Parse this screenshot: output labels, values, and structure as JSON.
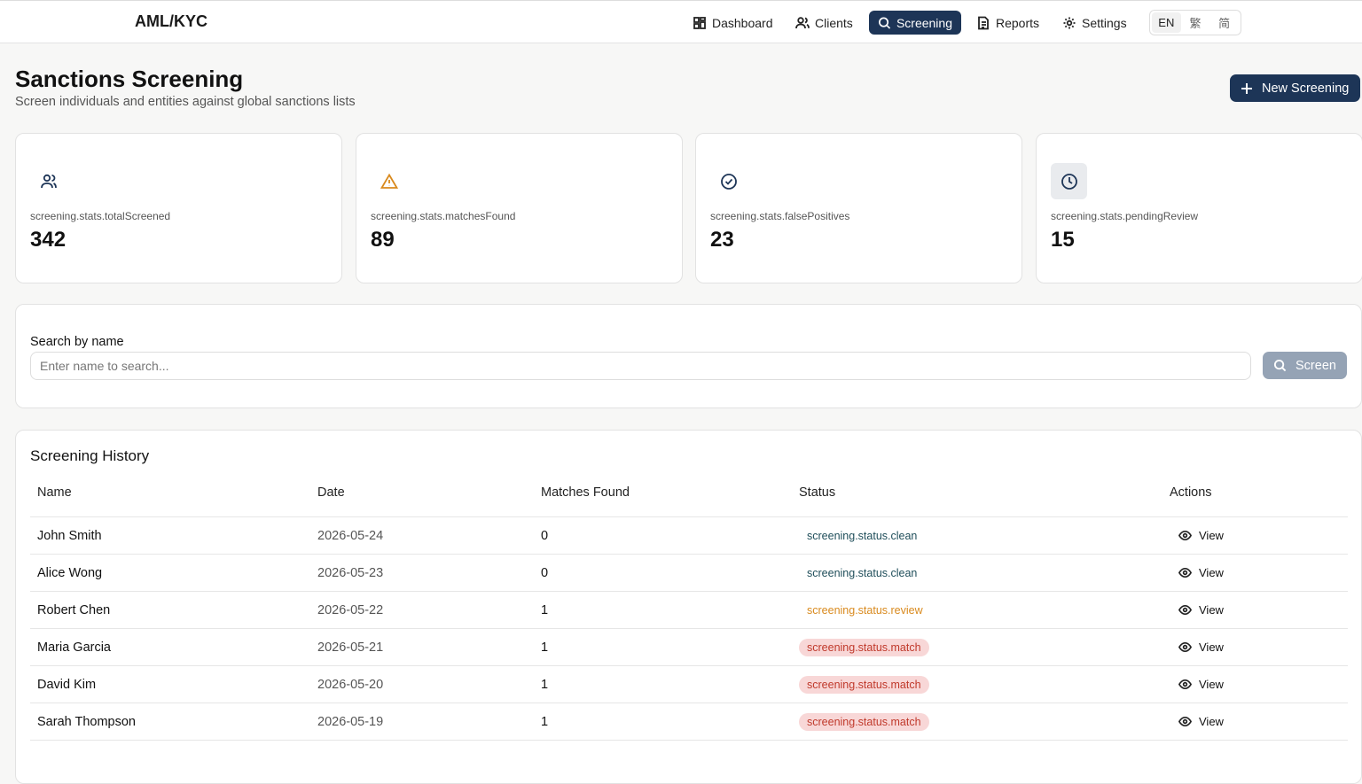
{
  "header": {
    "logo": "AML/KYC",
    "nav": [
      "Dashboard",
      "Clients",
      "Screening",
      "Reports",
      "Settings"
    ],
    "languages": [
      "EN",
      "繁",
      "简"
    ]
  },
  "page": {
    "title": "Sanctions Screening",
    "subtitle": "Screen individuals and entities against global sanctions lists",
    "action": "New Screening"
  },
  "stats": [
    {
      "label": "screening.stats.totalScreened",
      "value": 342
    },
    {
      "label": "screening.stats.matchesFound",
      "value": 89
    },
    {
      "label": "screening.stats.falsePositives",
      "value": 23
    },
    {
      "label": "screening.stats.pendingReview",
      "value": 15
    }
  ],
  "search": {
    "label": "Search by name",
    "placeholder": "Enter name to search...",
    "button": "Screen"
  },
  "history": {
    "title": "Screening History",
    "columns": [
      "Name",
      "Date",
      "Matches Found",
      "Status",
      "Actions"
    ],
    "rows": [
      [
        "John Smith",
        "2026-05-24",
        0,
        "screening.status.clean",
        "View"
      ],
      [
        "Alice Wong",
        "2026-05-23",
        0,
        "screening.status.clean",
        "View"
      ],
      [
        "Robert Chen",
        "2026-05-22",
        1,
        "screening.status.review",
        "View"
      ],
      [
        "Maria Garcia",
        "2026-05-21",
        1,
        "screening.status.match",
        "View"
      ],
      [
        "David Kim",
        "2026-05-20",
        1,
        "screening.status.match",
        "View"
      ],
      [
        "Sarah Thompson",
        "2026-05-19",
        1,
        "screening.status.match",
        "View"
      ]
    ]
  }
}
